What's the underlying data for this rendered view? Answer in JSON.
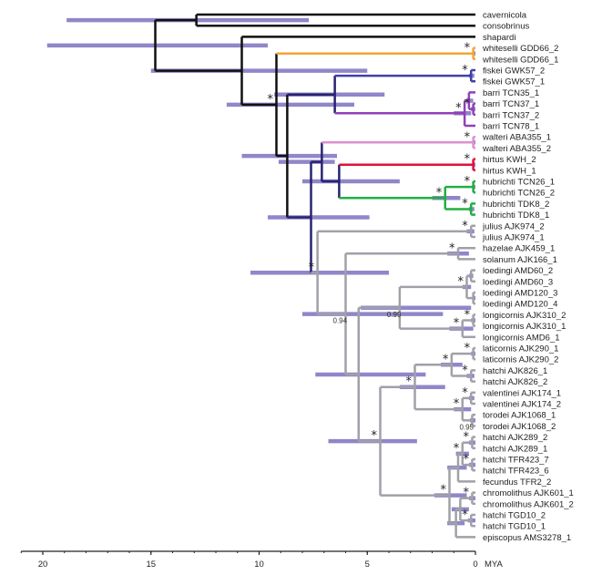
{
  "chart_data": {
    "type": "tree",
    "title": "",
    "xlabel": "MYA",
    "x_axis": {
      "unit_label": "MYA",
      "range": [
        21,
        0
      ],
      "ticks": [
        20,
        15,
        10,
        5,
        0
      ],
      "minor_tick_step": 1
    },
    "hpd_bar_color": "#7b72c0",
    "clade_colors": {
      "stem": "#111111",
      "stem_dark": "#2a2370",
      "whiteselli": "#f5a534",
      "fiskei": "#4040a8",
      "barri": "#9040b8",
      "walteri": "#dd90d0",
      "hirtus": "#e0103a",
      "hubrichti": "#20b040",
      "hubrichti_stem": "#1a6a7a",
      "gray": "#a0a0a8"
    },
    "tips": [
      "cavernicola",
      "consobrinus",
      "shapardi",
      "whiteselli GDD66_2",
      "whiteselli GDD66_1",
      "fiskei GWK57_2",
      "fiskei GWK57_1",
      "barri TCN35_1",
      "barri TCN37_1",
      "barri TCN37_2",
      "barri TCN78_1",
      "walteri ABA355_1",
      "walteri ABA355_2",
      "hirtus KWH_2",
      "hirtus KWH_1",
      "hubrichti TCN26_1",
      "hubrichti TCN26_2",
      "hubrichti TDK8_2",
      "hubrichti TDK8_1",
      "julius AJK974_2",
      "julius AJK974_1",
      "hazelae AJK459_1",
      "solanum AJK166_1",
      "loedingi AMD60_2",
      "loedingi AMD60_3",
      "loedingi AMD120_3",
      "loedingi AMD120_4",
      "longicornis AJK310_2",
      "longicornis AJK310_1",
      "longicornis AMD6_1",
      "laticornis AJK290_1",
      "laticornis AJK290_2",
      "hatchi AJK826_1",
      "hatchi AJK826_2",
      "valentinei AJK174_1",
      "valentinei AJK174_2",
      "torodei AJK1068_1",
      "torodei AJK1068_2",
      "hatchi AJK289_2",
      "hatchi AJK289_1",
      "hatchi TFR423_7",
      "hatchi TFR423_6",
      "fecundus TFR2_2",
      "chromolithus AJK601_1",
      "chromolithus AJK601_2",
      "hatchi TGD10_2",
      "hatchi TGD10_1",
      "episcopus AMS3278_1"
    ],
    "nodes": [
      {
        "id": "root",
        "age": 14.8,
        "children": [
          "n_cav_con",
          "n_core"
        ],
        "hpd": [
          19.8,
          9.6
        ],
        "color": "stem"
      },
      {
        "id": "n_cav_con",
        "age": 12.9,
        "children": [
          "t0",
          "t1"
        ],
        "hpd": [
          18.9,
          7.7
        ],
        "color": "stem"
      },
      {
        "id": "n_core",
        "age": 10.8,
        "children": [
          "t2",
          "n_A"
        ],
        "hpd": [
          15.0,
          5.0
        ],
        "color": "stem"
      },
      {
        "id": "n_A",
        "age": 9.2,
        "children": [
          "n_white",
          "n_B"
        ],
        "hpd": [
          11.5,
          5.6
        ],
        "color": "stem",
        "support": "*"
      },
      {
        "id": "n_white",
        "age": 0.1,
        "children": [
          "t3",
          "t4"
        ],
        "hpd": [
          0.15,
          0.0
        ],
        "color": "whiteselli",
        "support": "*",
        "stem_color": "whiteselli"
      },
      {
        "id": "n_B",
        "age": 8.7,
        "children": [
          "n_fb",
          "n_C"
        ],
        "hpd": [
          10.8,
          6.4
        ],
        "color": "stem"
      },
      {
        "id": "n_fb",
        "age": 6.5,
        "children": [
          "n_fiskei",
          "n_barri"
        ],
        "hpd": [
          9.3,
          4.2
        ],
        "color": "stem_dark"
      },
      {
        "id": "n_fiskei",
        "age": 0.2,
        "children": [
          "t5",
          "t6"
        ],
        "hpd": [
          0.3,
          0.05
        ],
        "color": "fiskei",
        "support": "*"
      },
      {
        "id": "n_barri",
        "age": 0.5,
        "children": [
          "n_b1",
          "t10"
        ],
        "hpd": [
          1.0,
          0.2
        ],
        "color": "barri",
        "support": "*"
      },
      {
        "id": "n_b1",
        "age": 0.3,
        "children": [
          "t7",
          "n_b2"
        ],
        "hpd": [
          0.4,
          0.1
        ],
        "color": "barri"
      },
      {
        "id": "n_b2",
        "age": 0.1,
        "children": [
          "t8",
          "t9"
        ],
        "hpd": [
          0.2,
          0.0
        ],
        "color": "barri",
        "support": "*"
      },
      {
        "id": "n_C",
        "age": 7.6,
        "children": [
          "n_D",
          "n_gray"
        ],
        "hpd": [
          9.6,
          4.9
        ],
        "color": "stem_dark"
      },
      {
        "id": "n_D",
        "age": 7.1,
        "children": [
          "n_walteri",
          "n_E"
        ],
        "hpd": [
          9.1,
          6.5
        ],
        "color": "stem_dark"
      },
      {
        "id": "n_walteri",
        "age": 0.1,
        "children": [
          "t11",
          "t12"
        ],
        "hpd": [
          0.15,
          0.0
        ],
        "color": "walteri",
        "support": "*"
      },
      {
        "id": "n_E",
        "age": 6.3,
        "children": [
          "n_hirtus",
          "n_hub"
        ],
        "hpd": [
          8.0,
          3.5
        ],
        "color": "stem_dark"
      },
      {
        "id": "n_hirtus",
        "age": 0.1,
        "children": [
          "t13",
          "t14"
        ],
        "hpd": [
          0.15,
          0.0
        ],
        "color": "hirtus",
        "support": "*"
      },
      {
        "id": "n_hub",
        "age": 1.4,
        "children": [
          "n_h1",
          "n_h2"
        ],
        "hpd": [
          2.0,
          0.7
        ],
        "color": "hubrichti",
        "support": "*"
      },
      {
        "id": "n_h1",
        "age": 0.1,
        "children": [
          "t15",
          "t16"
        ],
        "hpd": [
          0.15,
          0.0
        ],
        "color": "hubrichti",
        "support": "*"
      },
      {
        "id": "n_h2",
        "age": 0.2,
        "children": [
          "t17",
          "t18"
        ],
        "hpd": [
          0.3,
          0.05
        ],
        "color": "hubrichti",
        "support": "*"
      },
      {
        "id": "n_gray",
        "age": 7.3,
        "children": [
          "n_julius",
          "n_F"
        ],
        "hpd": [
          10.4,
          4.0
        ],
        "color": "gray",
        "support": "*"
      },
      {
        "id": "n_julius",
        "age": 0.2,
        "children": [
          "t19",
          "t20"
        ],
        "hpd": [
          0.4,
          0.05
        ],
        "color": "gray",
        "support": "*"
      },
      {
        "id": "n_F",
        "age": 6.0,
        "children": [
          "n_hs",
          "n_G"
        ],
        "hpd": [
          8.0,
          1.5
        ],
        "color": "gray",
        "support_num": "0.94"
      },
      {
        "id": "n_hs",
        "age": 0.8,
        "children": [
          "t21",
          "t22"
        ],
        "hpd": [
          1.3,
          0.3
        ],
        "color": "gray",
        "support": "*"
      },
      {
        "id": "n_G",
        "age": 5.4,
        "children": [
          "n_H",
          "n_I"
        ],
        "hpd": [
          7.4,
          2.3
        ],
        "color": "gray"
      },
      {
        "id": "n_H",
        "age": 3.5,
        "children": [
          "n_loed",
          "n_long"
        ],
        "hpd": [
          5.3,
          0.2
        ],
        "color": "gray",
        "support_num": "0.99"
      },
      {
        "id": "n_loed",
        "age": 0.4,
        "children": [
          "n_l1",
          "n_l2"
        ],
        "hpd": [
          0.6,
          0.2
        ],
        "color": "gray",
        "support": "*"
      },
      {
        "id": "n_l1",
        "age": 0.2,
        "children": [
          "t23",
          "t24"
        ],
        "hpd": [
          0.3,
          0.1
        ],
        "color": "gray"
      },
      {
        "id": "n_l2",
        "age": 0.1,
        "children": [
          "t25",
          "t26"
        ],
        "hpd": [
          0.15,
          0.0
        ],
        "color": "gray"
      },
      {
        "id": "n_long",
        "age": 0.6,
        "children": [
          "n_lo1",
          "t29"
        ],
        "hpd": [
          1.2,
          0.1
        ],
        "color": "gray",
        "support": "*"
      },
      {
        "id": "n_lo1",
        "age": 0.1,
        "children": [
          "t27",
          "t28"
        ],
        "hpd": [
          0.2,
          0.0
        ],
        "color": "gray",
        "support": "*"
      },
      {
        "id": "n_I",
        "age": 4.4,
        "children": [
          "n_J",
          "n_K"
        ],
        "hpd": [
          6.8,
          2.7
        ],
        "color": "gray",
        "support": "*"
      },
      {
        "id": "n_J",
        "age": 2.8,
        "children": [
          "n_L",
          "n_M"
        ],
        "hpd": [
          3.5,
          1.4
        ],
        "color": "gray",
        "support": "*"
      },
      {
        "id": "n_L",
        "age": 1.1,
        "children": [
          "n_lat",
          "n_h826"
        ],
        "hpd": [
          1.6,
          0.6
        ],
        "color": "gray",
        "support": "*"
      },
      {
        "id": "n_lat",
        "age": 0.1,
        "children": [
          "t30",
          "t31"
        ],
        "hpd": [
          0.2,
          0.0
        ],
        "color": "gray",
        "support": "*"
      },
      {
        "id": "n_h826",
        "age": 0.2,
        "children": [
          "t32",
          "t33"
        ],
        "hpd": [
          0.4,
          0.05
        ],
        "color": "gray",
        "support": "*"
      },
      {
        "id": "n_M",
        "age": 0.6,
        "children": [
          "n_val",
          "n_tor"
        ],
        "hpd": [
          1.0,
          0.2
        ],
        "color": "gray",
        "support": "*"
      },
      {
        "id": "n_val",
        "age": 0.2,
        "children": [
          "t34",
          "t35"
        ],
        "hpd": [
          0.3,
          0.05
        ],
        "color": "gray",
        "support": "*"
      },
      {
        "id": "n_tor",
        "age": 0.15,
        "children": [
          "t36",
          "t37"
        ],
        "hpd": [
          0.25,
          0.0
        ],
        "color": "gray",
        "support_num": "0.95"
      },
      {
        "id": "n_K",
        "age": 1.2,
        "children": [
          "n_N",
          "n_O"
        ],
        "hpd": [
          1.9,
          0.4
        ],
        "color": "gray",
        "support": "*"
      },
      {
        "id": "n_N",
        "age": 0.8,
        "children": [
          "n_N1",
          "t42"
        ],
        "hpd": [
          1.3,
          0.4
        ],
        "color": "gray"
      },
      {
        "id": "n_N1",
        "age": 0.6,
        "children": [
          "n_h289",
          "n_tfr"
        ],
        "hpd": [
          0.9,
          0.3
        ],
        "color": "gray",
        "support": "*"
      },
      {
        "id": "n_h289",
        "age": 0.15,
        "children": [
          "t38",
          "t39"
        ],
        "hpd": [
          0.3,
          0.0
        ],
        "color": "gray",
        "support": "*"
      },
      {
        "id": "n_tfr",
        "age": 0.15,
        "children": [
          "t40",
          "t41"
        ],
        "hpd": [
          0.3,
          0.0
        ],
        "color": "gray",
        "support": "*"
      },
      {
        "id": "n_O",
        "age": 0.9,
        "children": [
          "n_O1",
          "t47"
        ],
        "hpd": [
          1.3,
          0.5
        ],
        "color": "gray"
      },
      {
        "id": "n_O1",
        "age": 0.7,
        "children": [
          "n_chr",
          "n_tgd"
        ],
        "hpd": [
          1.1,
          0.3
        ],
        "color": "gray"
      },
      {
        "id": "n_chr",
        "age": 0.15,
        "children": [
          "t43",
          "t44"
        ],
        "hpd": [
          0.3,
          0.0
        ],
        "color": "gray",
        "support": "*"
      },
      {
        "id": "n_tgd",
        "age": 0.2,
        "children": [
          "t45",
          "t46"
        ],
        "hpd": [
          0.35,
          0.0
        ],
        "color": "gray",
        "support": "*"
      }
    ]
  }
}
